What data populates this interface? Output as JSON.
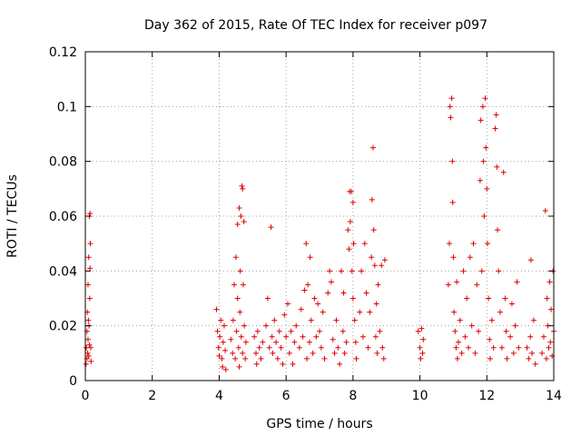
{
  "chart_data": {
    "type": "scatter",
    "title": "Day 362 of 2015, Rate Of TEC Index for receiver p097",
    "xlabel": "GPS time / hours",
    "ylabel": "ROTI / TECUs",
    "xlim": [
      0,
      14
    ],
    "ylim": [
      0,
      0.12
    ],
    "xticks": [
      0,
      2,
      4,
      6,
      8,
      10,
      12,
      14
    ],
    "xtick_labels": [
      "0",
      "2",
      "4",
      "6",
      "8",
      "10",
      "12",
      "14"
    ],
    "yticks": [
      0,
      0.02,
      0.04,
      0.06,
      0.08,
      0.1,
      0.12
    ],
    "ytick_labels": [
      "0",
      "0.02",
      "0.04",
      "0.06",
      "0.08",
      "0.1",
      "0.12"
    ],
    "grid": true,
    "marker": "+",
    "marker_color": "#e00000",
    "series": [
      {
        "name": "p097",
        "points": [
          [
            0.02,
            0.006
          ],
          [
            0.03,
            0.012
          ],
          [
            0.05,
            0.018
          ],
          [
            0.05,
            0.008
          ],
          [
            0.06,
            0.025
          ],
          [
            0.07,
            0.01
          ],
          [
            0.08,
            0.015
          ],
          [
            0.08,
            0.035
          ],
          [
            0.09,
            0.022
          ],
          [
            0.1,
            0.009
          ],
          [
            0.1,
            0.045
          ],
          [
            0.11,
            0.02
          ],
          [
            0.12,
            0.06
          ],
          [
            0.12,
            0.013
          ],
          [
            0.13,
            0.03
          ],
          [
            0.14,
            0.061
          ],
          [
            0.14,
            0.041
          ],
          [
            0.15,
            0.05
          ],
          [
            0.16,
            0.012
          ],
          [
            0.17,
            0.007
          ],
          [
            3.92,
            0.026
          ],
          [
            3.95,
            0.018
          ],
          [
            3.98,
            0.012
          ],
          [
            4.0,
            0.009
          ],
          [
            4.02,
            0.016
          ],
          [
            4.05,
            0.022
          ],
          [
            4.08,
            0.008
          ],
          [
            4.1,
            0.005
          ],
          [
            4.12,
            0.014
          ],
          [
            4.15,
            0.02
          ],
          [
            4.18,
            0.011
          ],
          [
            4.2,
            0.004
          ],
          [
            4.35,
            0.015
          ],
          [
            4.4,
            0.01
          ],
          [
            4.42,
            0.022
          ],
          [
            4.45,
            0.035
          ],
          [
            4.48,
            0.008
          ],
          [
            4.5,
            0.045
          ],
          [
            4.52,
            0.018
          ],
          [
            4.55,
            0.057
          ],
          [
            4.55,
            0.03
          ],
          [
            4.58,
            0.012
          ],
          [
            4.6,
            0.063
          ],
          [
            4.6,
            0.005
          ],
          [
            4.62,
            0.025
          ],
          [
            4.63,
            0.04
          ],
          [
            4.65,
            0.06
          ],
          [
            4.66,
            0.016
          ],
          [
            4.68,
            0.071
          ],
          [
            4.7,
            0.07
          ],
          [
            4.7,
            0.01
          ],
          [
            4.72,
            0.035
          ],
          [
            4.74,
            0.058
          ],
          [
            4.75,
            0.02
          ],
          [
            4.78,
            0.008
          ],
          [
            4.8,
            0.014
          ],
          [
            5.05,
            0.016
          ],
          [
            5.1,
            0.01
          ],
          [
            5.12,
            0.006
          ],
          [
            5.15,
            0.018
          ],
          [
            5.2,
            0.012
          ],
          [
            5.25,
            0.008
          ],
          [
            5.3,
            0.014
          ],
          [
            5.4,
            0.02
          ],
          [
            5.45,
            0.03
          ],
          [
            5.5,
            0.012
          ],
          [
            5.55,
            0.056
          ],
          [
            5.58,
            0.016
          ],
          [
            5.6,
            0.01
          ],
          [
            5.65,
            0.022
          ],
          [
            5.7,
            0.014
          ],
          [
            5.75,
            0.008
          ],
          [
            5.8,
            0.018
          ],
          [
            5.85,
            0.012
          ],
          [
            5.9,
            0.006
          ],
          [
            5.95,
            0.024
          ],
          [
            6.0,
            0.016
          ],
          [
            6.05,
            0.028
          ],
          [
            6.1,
            0.01
          ],
          [
            6.15,
            0.018
          ],
          [
            6.2,
            0.006
          ],
          [
            6.25,
            0.014
          ],
          [
            6.3,
            0.02
          ],
          [
            6.4,
            0.012
          ],
          [
            6.45,
            0.026
          ],
          [
            6.5,
            0.016
          ],
          [
            6.55,
            0.033
          ],
          [
            6.6,
            0.05
          ],
          [
            6.62,
            0.008
          ],
          [
            6.65,
            0.035
          ],
          [
            6.7,
            0.014
          ],
          [
            6.72,
            0.045
          ],
          [
            6.75,
            0.022
          ],
          [
            6.8,
            0.01
          ],
          [
            6.85,
            0.03
          ],
          [
            6.9,
            0.016
          ],
          [
            6.95,
            0.028
          ],
          [
            7.0,
            0.018
          ],
          [
            7.05,
            0.012
          ],
          [
            7.1,
            0.025
          ],
          [
            7.15,
            0.008
          ],
          [
            7.25,
            0.032
          ],
          [
            7.3,
            0.04
          ],
          [
            7.35,
            0.036
          ],
          [
            7.4,
            0.015
          ],
          [
            7.45,
            0.01
          ],
          [
            7.5,
            0.022
          ],
          [
            7.55,
            0.012
          ],
          [
            7.6,
            0.006
          ],
          [
            7.65,
            0.04
          ],
          [
            7.7,
            0.018
          ],
          [
            7.72,
            0.032
          ],
          [
            7.75,
            0.01
          ],
          [
            7.8,
            0.014
          ],
          [
            7.85,
            0.055
          ],
          [
            7.88,
            0.048
          ],
          [
            7.9,
            0.069
          ],
          [
            7.92,
            0.058
          ],
          [
            7.95,
            0.069
          ],
          [
            7.97,
            0.04
          ],
          [
            8.0,
            0.065
          ],
          [
            8.0,
            0.03
          ],
          [
            8.02,
            0.05
          ],
          [
            8.05,
            0.022
          ],
          [
            8.08,
            0.014
          ],
          [
            8.1,
            0.008
          ],
          [
            8.2,
            0.025
          ],
          [
            8.25,
            0.04
          ],
          [
            8.3,
            0.016
          ],
          [
            8.35,
            0.05
          ],
          [
            8.4,
            0.032
          ],
          [
            8.45,
            0.012
          ],
          [
            8.5,
            0.025
          ],
          [
            8.55,
            0.045
          ],
          [
            8.57,
            0.066
          ],
          [
            8.6,
            0.085
          ],
          [
            8.62,
            0.055
          ],
          [
            8.65,
            0.042
          ],
          [
            8.68,
            0.016
          ],
          [
            8.7,
            0.028
          ],
          [
            8.72,
            0.01
          ],
          [
            8.75,
            0.035
          ],
          [
            8.8,
            0.018
          ],
          [
            8.85,
            0.042
          ],
          [
            8.88,
            0.012
          ],
          [
            8.92,
            0.008
          ],
          [
            8.95,
            0.044
          ],
          [
            9.95,
            0.018
          ],
          [
            10.0,
            0.012
          ],
          [
            10.02,
            0.008
          ],
          [
            10.05,
            0.019
          ],
          [
            10.08,
            0.01
          ],
          [
            10.1,
            0.015
          ],
          [
            10.85,
            0.035
          ],
          [
            10.88,
            0.05
          ],
          [
            10.9,
            0.1
          ],
          [
            10.92,
            0.096
          ],
          [
            10.95,
            0.103
          ],
          [
            10.97,
            0.08
          ],
          [
            10.98,
            0.065
          ],
          [
            11.0,
            0.045
          ],
          [
            11.02,
            0.025
          ],
          [
            11.05,
            0.018
          ],
          [
            11.08,
            0.012
          ],
          [
            11.1,
            0.036
          ],
          [
            11.12,
            0.008
          ],
          [
            11.15,
            0.014
          ],
          [
            11.2,
            0.022
          ],
          [
            11.25,
            0.01
          ],
          [
            11.3,
            0.04
          ],
          [
            11.35,
            0.016
          ],
          [
            11.4,
            0.03
          ],
          [
            11.45,
            0.012
          ],
          [
            11.5,
            0.045
          ],
          [
            11.55,
            0.02
          ],
          [
            11.6,
            0.05
          ],
          [
            11.65,
            0.01
          ],
          [
            11.7,
            0.035
          ],
          [
            11.75,
            0.018
          ],
          [
            11.8,
            0.073
          ],
          [
            11.82,
            0.095
          ],
          [
            11.85,
            0.04
          ],
          [
            11.88,
            0.1
          ],
          [
            11.9,
            0.08
          ],
          [
            11.92,
            0.06
          ],
          [
            11.95,
            0.103
          ],
          [
            11.97,
            0.085
          ],
          [
            12.0,
            0.07
          ],
          [
            12.02,
            0.05
          ],
          [
            12.05,
            0.03
          ],
          [
            12.08,
            0.015
          ],
          [
            12.1,
            0.008
          ],
          [
            12.15,
            0.022
          ],
          [
            12.2,
            0.012
          ],
          [
            12.25,
            0.092
          ],
          [
            12.28,
            0.097
          ],
          [
            12.3,
            0.078
          ],
          [
            12.32,
            0.055
          ],
          [
            12.35,
            0.04
          ],
          [
            12.4,
            0.025
          ],
          [
            12.45,
            0.012
          ],
          [
            12.5,
            0.076
          ],
          [
            12.55,
            0.03
          ],
          [
            12.58,
            0.018
          ],
          [
            12.6,
            0.008
          ],
          [
            12.7,
            0.016
          ],
          [
            12.75,
            0.028
          ],
          [
            12.8,
            0.01
          ],
          [
            12.85,
            0.02
          ],
          [
            12.9,
            0.036
          ],
          [
            12.95,
            0.012
          ],
          [
            13.2,
            0.012
          ],
          [
            13.25,
            0.008
          ],
          [
            13.3,
            0.016
          ],
          [
            13.32,
            0.044
          ],
          [
            13.35,
            0.01
          ],
          [
            13.4,
            0.022
          ],
          [
            13.45,
            0.006
          ],
          [
            13.65,
            0.01
          ],
          [
            13.7,
            0.016
          ],
          [
            13.75,
            0.062
          ],
          [
            13.78,
            0.008
          ],
          [
            13.8,
            0.03
          ],
          [
            13.82,
            0.02
          ],
          [
            13.85,
            0.012
          ],
          [
            13.88,
            0.036
          ],
          [
            13.9,
            0.014
          ],
          [
            13.92,
            0.026
          ],
          [
            13.95,
            0.009
          ],
          [
            13.98,
            0.04
          ],
          [
            14.0,
            0.018
          ]
        ]
      }
    ]
  }
}
